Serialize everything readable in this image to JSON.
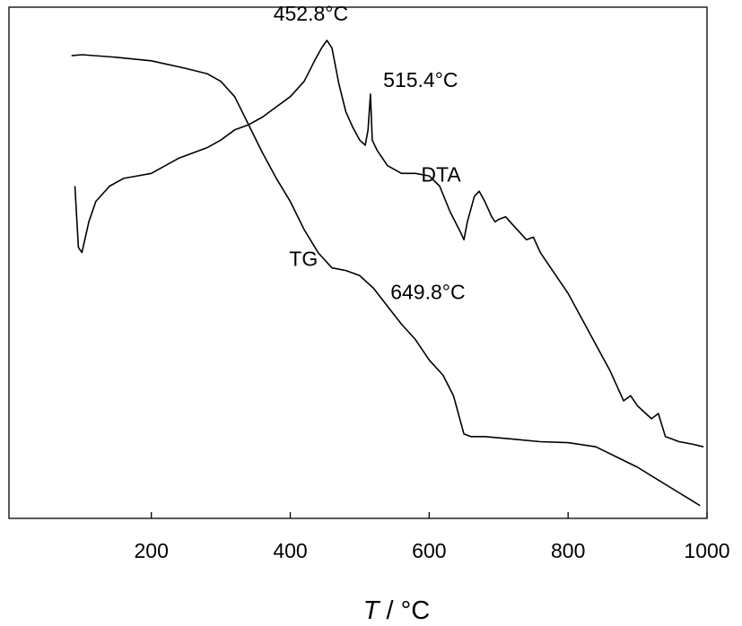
{
  "chart_data": {
    "type": "line",
    "title": "",
    "xlabel": {
      "symbol": "T",
      "unit": " / °C"
    },
    "ylabel": "",
    "xlim": [
      -5,
      1000
    ],
    "ylim": [
      0,
      1
    ],
    "xticks": [
      200,
      400,
      600,
      800,
      1000
    ],
    "grid": false,
    "legend": "none",
    "series": [
      {
        "name": "DTA",
        "points": [
          [
            90,
            0.65
          ],
          [
            95,
            0.53
          ],
          [
            100,
            0.52
          ],
          [
            110,
            0.58
          ],
          [
            120,
            0.62
          ],
          [
            140,
            0.65
          ],
          [
            160,
            0.665
          ],
          [
            180,
            0.67
          ],
          [
            200,
            0.675
          ],
          [
            220,
            0.69
          ],
          [
            240,
            0.705
          ],
          [
            260,
            0.715
          ],
          [
            280,
            0.725
          ],
          [
            300,
            0.74
          ],
          [
            320,
            0.76
          ],
          [
            340,
            0.77
          ],
          [
            360,
            0.785
          ],
          [
            380,
            0.805
          ],
          [
            400,
            0.825
          ],
          [
            420,
            0.855
          ],
          [
            435,
            0.895
          ],
          [
            445,
            0.92
          ],
          [
            452.8,
            0.935
          ],
          [
            460,
            0.92
          ],
          [
            470,
            0.85
          ],
          [
            480,
            0.795
          ],
          [
            490,
            0.765
          ],
          [
            500,
            0.74
          ],
          [
            508,
            0.73
          ],
          [
            512,
            0.76
          ],
          [
            515.4,
            0.83
          ],
          [
            518,
            0.74
          ],
          [
            525,
            0.72
          ],
          [
            540,
            0.69
          ],
          [
            560,
            0.675
          ],
          [
            580,
            0.675
          ],
          [
            600,
            0.67
          ],
          [
            615,
            0.65
          ],
          [
            630,
            0.6
          ],
          [
            645,
            0.56
          ],
          [
            650,
            0.545
          ],
          [
            655,
            0.58
          ],
          [
            665,
            0.63
          ],
          [
            672,
            0.64
          ],
          [
            680,
            0.62
          ],
          [
            690,
            0.59
          ],
          [
            695,
            0.58
          ],
          [
            700,
            0.585
          ],
          [
            710,
            0.59
          ],
          [
            720,
            0.575
          ],
          [
            730,
            0.56
          ],
          [
            740,
            0.545
          ],
          [
            750,
            0.55
          ],
          [
            760,
            0.52
          ],
          [
            780,
            0.48
          ],
          [
            800,
            0.44
          ],
          [
            820,
            0.39
          ],
          [
            840,
            0.34
          ],
          [
            860,
            0.29
          ],
          [
            880,
            0.23
          ],
          [
            890,
            0.24
          ],
          [
            900,
            0.22
          ],
          [
            920,
            0.195
          ],
          [
            930,
            0.205
          ],
          [
            940,
            0.16
          ],
          [
            960,
            0.15
          ],
          [
            980,
            0.145
          ],
          [
            995,
            0.14
          ]
        ]
      },
      {
        "name": "TG",
        "points": [
          [
            85,
            0.905
          ],
          [
            100,
            0.907
          ],
          [
            150,
            0.902
          ],
          [
            200,
            0.895
          ],
          [
            250,
            0.88
          ],
          [
            280,
            0.87
          ],
          [
            300,
            0.855
          ],
          [
            320,
            0.825
          ],
          [
            340,
            0.77
          ],
          [
            360,
            0.715
          ],
          [
            380,
            0.665
          ],
          [
            400,
            0.62
          ],
          [
            420,
            0.565
          ],
          [
            440,
            0.52
          ],
          [
            460,
            0.49
          ],
          [
            480,
            0.485
          ],
          [
            500,
            0.475
          ],
          [
            520,
            0.45
          ],
          [
            540,
            0.415
          ],
          [
            560,
            0.38
          ],
          [
            580,
            0.35
          ],
          [
            600,
            0.31
          ],
          [
            620,
            0.28
          ],
          [
            635,
            0.24
          ],
          [
            645,
            0.19
          ],
          [
            650,
            0.165
          ],
          [
            660,
            0.16
          ],
          [
            680,
            0.16
          ],
          [
            720,
            0.155
          ],
          [
            760,
            0.15
          ],
          [
            800,
            0.148
          ],
          [
            840,
            0.14
          ],
          [
            870,
            0.12
          ],
          [
            900,
            0.1
          ],
          [
            930,
            0.075
          ],
          [
            960,
            0.05
          ],
          [
            990,
            0.025
          ]
        ]
      }
    ],
    "annotations": [
      {
        "text": "452.8°C",
        "x": 452.8,
        "y": 0.935
      },
      {
        "text": "515.4°C",
        "x": 515.4,
        "y": 0.83
      },
      {
        "text": "DTA",
        "x": 560,
        "y": 0.68
      },
      {
        "text": "649.8°C",
        "x": 649.8,
        "y": 0.545
      },
      {
        "text": "TG",
        "x": 370,
        "y": 0.48
      }
    ]
  }
}
